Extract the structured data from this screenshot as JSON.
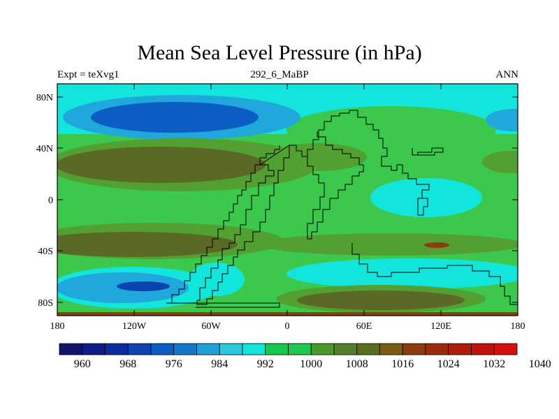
{
  "title": "Mean Sea Level Pressure (in hPa)",
  "left_label": "Expt = teXvg1",
  "center_label": "292_6_MaBP",
  "right_label": "ANN",
  "lat_ticks": [
    "80N",
    "40N",
    "0",
    "40S",
    "80S"
  ],
  "lon_ticks": [
    "180",
    "120W",
    "60W",
    "0",
    "60E",
    "120E",
    "180"
  ],
  "colorbar": {
    "labels": [
      "960",
      "968",
      "976",
      "984",
      "992",
      "1000",
      "1008",
      "1016",
      "1024",
      "1032",
      "1040"
    ],
    "colors": [
      "#13136b",
      "#0e1d86",
      "#0a2a9e",
      "#0c44b4",
      "#0c5ec4",
      "#1378c8",
      "#1fa0d6",
      "#2cc8e0",
      "#12e6dc",
      "#14c850",
      "#1ec850",
      "#4a9a2a",
      "#52802a",
      "#5c6e1e",
      "#7a5c14",
      "#8e3c0c",
      "#9e2a0c",
      "#b01c0c",
      "#c2140e",
      "#d41010"
    ]
  },
  "palette": {
    "ocean_green": "#3cc84c",
    "mid_green": "#52a032",
    "olive": "#5a6a26",
    "cyan": "#12e6dc",
    "light_blue": "#20a8dc",
    "blue": "#0c5ec4",
    "dark_blue": "#0a44b0",
    "brown_red": "#8e3c0c"
  }
}
